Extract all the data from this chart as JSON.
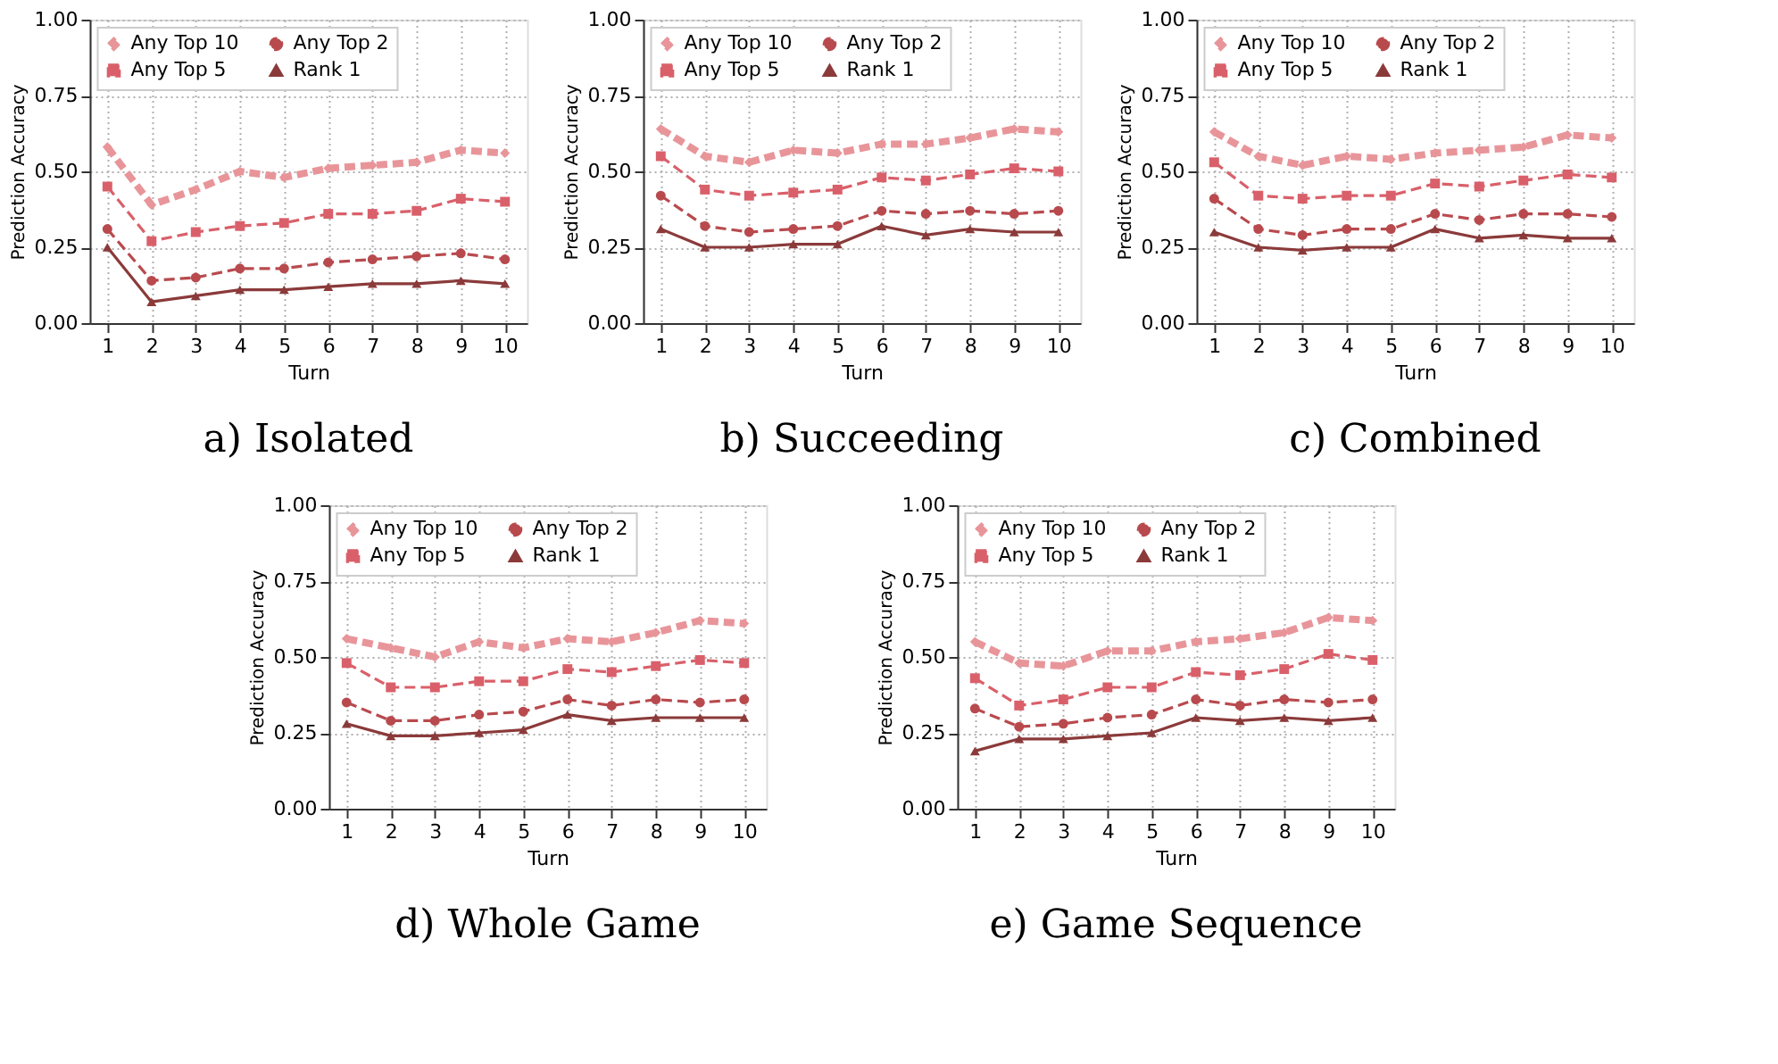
{
  "chart_data": [
    {
      "type": "line",
      "title": "a) Isolated",
      "xlabel": "Turn",
      "ylabel": "Prediction Accuracy",
      "x": [
        1,
        2,
        3,
        4,
        5,
        6,
        7,
        8,
        9,
        10
      ],
      "xlim": [
        0.6,
        10.5
      ],
      "xticks": [
        1,
        2,
        3,
        4,
        5,
        6,
        7,
        8,
        9,
        10
      ],
      "ylim": [
        0,
        1
      ],
      "yticks": [
        {
          "value": 0,
          "label": "0.00"
        },
        {
          "value": 0.25,
          "label": "0.25"
        },
        {
          "value": 0.5,
          "label": "0.50"
        },
        {
          "value": 0.75,
          "label": "0.75"
        },
        {
          "value": 1,
          "label": "1.00"
        }
      ],
      "grid": true,
      "legend": "top left",
      "series": [
        {
          "name": "Any Top 10",
          "color": "#e8959a",
          "marker": "diamond",
          "line_style": "dashed",
          "values": [
            0.58,
            0.39,
            0.44,
            0.5,
            0.48,
            0.51,
            0.52,
            0.53,
            0.57,
            0.56
          ]
        },
        {
          "name": "Any Top 5",
          "color": "#d9606a",
          "marker": "square",
          "line_style": "dashed",
          "values": [
            0.45,
            0.27,
            0.3,
            0.32,
            0.33,
            0.36,
            0.36,
            0.37,
            0.41,
            0.4
          ]
        },
        {
          "name": "Any Top 2",
          "color": "#b84a4e",
          "marker": "circle",
          "line_style": "dashed",
          "values": [
            0.31,
            0.14,
            0.15,
            0.18,
            0.18,
            0.2,
            0.21,
            0.22,
            0.23,
            0.21
          ]
        },
        {
          "name": "Rank 1",
          "color": "#8b3a3a",
          "marker": "triangle",
          "line_style": "solid",
          "values": [
            0.25,
            0.07,
            0.09,
            0.11,
            0.11,
            0.12,
            0.13,
            0.13,
            0.14,
            0.13
          ]
        }
      ]
    },
    {
      "type": "line",
      "title": "b) Succeeding",
      "xlabel": "Turn",
      "ylabel": "Prediction Accuracy",
      "x": [
        1,
        2,
        3,
        4,
        5,
        6,
        7,
        8,
        9,
        10
      ],
      "xlim": [
        0.6,
        10.5
      ],
      "xticks": [
        1,
        2,
        3,
        4,
        5,
        6,
        7,
        8,
        9,
        10
      ],
      "ylim": [
        0,
        1
      ],
      "yticks": [
        {
          "value": 0,
          "label": "0.00"
        },
        {
          "value": 0.25,
          "label": "0.25"
        },
        {
          "value": 0.5,
          "label": "0.50"
        },
        {
          "value": 0.75,
          "label": "0.75"
        },
        {
          "value": 1,
          "label": "1.00"
        }
      ],
      "grid": true,
      "legend": "top left",
      "series": [
        {
          "name": "Any Top 10",
          "color": "#e8959a",
          "marker": "diamond",
          "line_style": "dashed",
          "values": [
            0.64,
            0.55,
            0.53,
            0.57,
            0.56,
            0.59,
            0.59,
            0.61,
            0.64,
            0.63
          ]
        },
        {
          "name": "Any Top 5",
          "color": "#d9606a",
          "marker": "square",
          "line_style": "dashed",
          "values": [
            0.55,
            0.44,
            0.42,
            0.43,
            0.44,
            0.48,
            0.47,
            0.49,
            0.51,
            0.5
          ]
        },
        {
          "name": "Any Top 2",
          "color": "#b84a4e",
          "marker": "circle",
          "line_style": "dashed",
          "values": [
            0.42,
            0.32,
            0.3,
            0.31,
            0.32,
            0.37,
            0.36,
            0.37,
            0.36,
            0.37
          ]
        },
        {
          "name": "Rank 1",
          "color": "#8b3a3a",
          "marker": "triangle",
          "line_style": "solid",
          "values": [
            0.31,
            0.25,
            0.25,
            0.26,
            0.26,
            0.32,
            0.29,
            0.31,
            0.3,
            0.3
          ]
        }
      ]
    },
    {
      "type": "line",
      "title": "c) Combined",
      "xlabel": "Turn",
      "ylabel": "Prediction Accuracy",
      "x": [
        1,
        2,
        3,
        4,
        5,
        6,
        7,
        8,
        9,
        10
      ],
      "xlim": [
        0.6,
        10.5
      ],
      "xticks": [
        1,
        2,
        3,
        4,
        5,
        6,
        7,
        8,
        9,
        10
      ],
      "ylim": [
        0,
        1
      ],
      "yticks": [
        {
          "value": 0,
          "label": "0.00"
        },
        {
          "value": 0.25,
          "label": "0.25"
        },
        {
          "value": 0.5,
          "label": "0.50"
        },
        {
          "value": 0.75,
          "label": "0.75"
        },
        {
          "value": 1,
          "label": "1.00"
        }
      ],
      "grid": true,
      "legend": "top left",
      "series": [
        {
          "name": "Any Top 10",
          "color": "#e8959a",
          "marker": "diamond",
          "line_style": "dashed",
          "values": [
            0.63,
            0.55,
            0.52,
            0.55,
            0.54,
            0.56,
            0.57,
            0.58,
            0.62,
            0.61
          ]
        },
        {
          "name": "Any Top 5",
          "color": "#d9606a",
          "marker": "square",
          "line_style": "dashed",
          "values": [
            0.53,
            0.42,
            0.41,
            0.42,
            0.42,
            0.46,
            0.45,
            0.47,
            0.49,
            0.48
          ]
        },
        {
          "name": "Any Top 2",
          "color": "#b84a4e",
          "marker": "circle",
          "line_style": "dashed",
          "values": [
            0.41,
            0.31,
            0.29,
            0.31,
            0.31,
            0.36,
            0.34,
            0.36,
            0.36,
            0.35
          ]
        },
        {
          "name": "Rank 1",
          "color": "#8b3a3a",
          "marker": "triangle",
          "line_style": "solid",
          "values": [
            0.3,
            0.25,
            0.24,
            0.25,
            0.25,
            0.31,
            0.28,
            0.29,
            0.28,
            0.28
          ]
        }
      ]
    },
    {
      "type": "line",
      "title": "d) Whole Game",
      "xlabel": "Turn",
      "ylabel": "Prediction Accuracy",
      "x": [
        1,
        2,
        3,
        4,
        5,
        6,
        7,
        8,
        9,
        10
      ],
      "xlim": [
        0.6,
        10.5
      ],
      "xticks": [
        1,
        2,
        3,
        4,
        5,
        6,
        7,
        8,
        9,
        10
      ],
      "ylim": [
        0,
        1
      ],
      "yticks": [
        {
          "value": 0,
          "label": "0.00"
        },
        {
          "value": 0.25,
          "label": "0.25"
        },
        {
          "value": 0.5,
          "label": "0.50"
        },
        {
          "value": 0.75,
          "label": "0.75"
        },
        {
          "value": 1,
          "label": "1.00"
        }
      ],
      "grid": true,
      "legend": "top left",
      "series": [
        {
          "name": "Any Top 10",
          "color": "#e8959a",
          "marker": "diamond",
          "line_style": "dashed",
          "values": [
            0.56,
            0.53,
            0.5,
            0.55,
            0.53,
            0.56,
            0.55,
            0.58,
            0.62,
            0.61
          ]
        },
        {
          "name": "Any Top 5",
          "color": "#d9606a",
          "marker": "square",
          "line_style": "dashed",
          "values": [
            0.48,
            0.4,
            0.4,
            0.42,
            0.42,
            0.46,
            0.45,
            0.47,
            0.49,
            0.48
          ]
        },
        {
          "name": "Any Top 2",
          "color": "#b84a4e",
          "marker": "circle",
          "line_style": "dashed",
          "values": [
            0.35,
            0.29,
            0.29,
            0.31,
            0.32,
            0.36,
            0.34,
            0.36,
            0.35,
            0.36
          ]
        },
        {
          "name": "Rank 1",
          "color": "#8b3a3a",
          "marker": "triangle",
          "line_style": "solid",
          "values": [
            0.28,
            0.24,
            0.24,
            0.25,
            0.26,
            0.31,
            0.29,
            0.3,
            0.3,
            0.3
          ]
        }
      ]
    },
    {
      "type": "line",
      "title": "e) Game Sequence",
      "xlabel": "Turn",
      "ylabel": "Prediction Accuracy",
      "x": [
        1,
        2,
        3,
        4,
        5,
        6,
        7,
        8,
        9,
        10
      ],
      "xlim": [
        0.6,
        10.5
      ],
      "xticks": [
        1,
        2,
        3,
        4,
        5,
        6,
        7,
        8,
        9,
        10
      ],
      "ylim": [
        0,
        1
      ],
      "yticks": [
        {
          "value": 0,
          "label": "0.00"
        },
        {
          "value": 0.25,
          "label": "0.25"
        },
        {
          "value": 0.5,
          "label": "0.50"
        },
        {
          "value": 0.75,
          "label": "0.75"
        },
        {
          "value": 1,
          "label": "1.00"
        }
      ],
      "grid": true,
      "legend": "top left",
      "series": [
        {
          "name": "Any Top 10",
          "color": "#e8959a",
          "marker": "diamond",
          "line_style": "dashed",
          "values": [
            0.55,
            0.48,
            0.47,
            0.52,
            0.52,
            0.55,
            0.56,
            0.58,
            0.63,
            0.62
          ]
        },
        {
          "name": "Any Top 5",
          "color": "#d9606a",
          "marker": "square",
          "line_style": "dashed",
          "values": [
            0.43,
            0.34,
            0.36,
            0.4,
            0.4,
            0.45,
            0.44,
            0.46,
            0.51,
            0.49
          ]
        },
        {
          "name": "Any Top 2",
          "color": "#b84a4e",
          "marker": "circle",
          "line_style": "dashed",
          "values": [
            0.33,
            0.27,
            0.28,
            0.3,
            0.31,
            0.36,
            0.34,
            0.36,
            0.35,
            0.36
          ]
        },
        {
          "name": "Rank 1",
          "color": "#8b3a3a",
          "marker": "triangle",
          "line_style": "solid",
          "values": [
            0.19,
            0.23,
            0.23,
            0.24,
            0.25,
            0.3,
            0.29,
            0.3,
            0.29,
            0.3
          ]
        }
      ]
    }
  ]
}
